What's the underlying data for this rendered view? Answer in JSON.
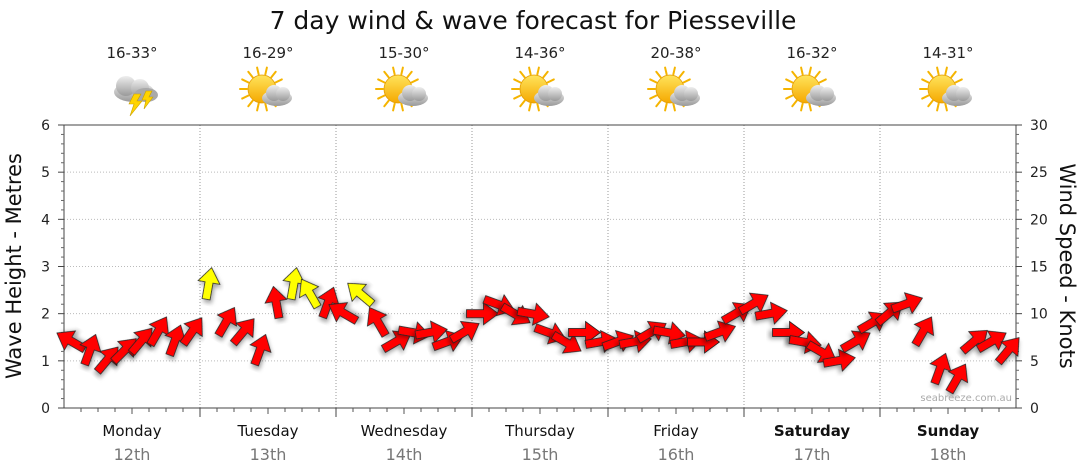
{
  "chart_data": {
    "type": "scatter",
    "title": "7 day wind & wave forecast for Piesseville",
    "ylabel_left": "Wave Height - Metres",
    "ylabel_right": "Wind Speed - Knots",
    "ylim_left": [
      0,
      6
    ],
    "ylim_right": [
      0,
      30
    ],
    "yticks_left": [
      "0",
      "1",
      "2",
      "3",
      "4",
      "5",
      "6"
    ],
    "yticks_right": [
      "0",
      "5",
      "10",
      "15",
      "20",
      "25",
      "30"
    ],
    "grid": true,
    "days": [
      {
        "name": "Monday",
        "date": "12th",
        "temp": "16-33°",
        "weather": "storm-cloud-icon",
        "bold": false
      },
      {
        "name": "Tuesday",
        "date": "13th",
        "temp": "16-29°",
        "weather": "sun-cloud-icon",
        "bold": false
      },
      {
        "name": "Wednesday",
        "date": "14th",
        "temp": "15-30°",
        "weather": "sun-cloud-icon",
        "bold": false
      },
      {
        "name": "Thursday",
        "date": "15th",
        "temp": "14-36°",
        "weather": "sun-cloud-icon",
        "bold": false
      },
      {
        "name": "Friday",
        "date": "16th",
        "temp": "20-38°",
        "weather": "sun-cloud-icon",
        "bold": false
      },
      {
        "name": "Saturday",
        "date": "17th",
        "temp": "16-32°",
        "weather": "sun-cloud-icon",
        "bold": true
      },
      {
        "name": "Sunday",
        "date": "18th",
        "temp": "14-31°",
        "weather": "sun-cloud-icon",
        "bold": true
      }
    ],
    "wind_arrow_colors": {
      "low": "#ff0000",
      "high": "#ffff00"
    },
    "wind_series": {
      "name": "Wind",
      "unit": "knots",
      "x_hours": [
        0,
        3,
        6,
        9,
        12,
        15,
        18,
        21,
        24,
        27,
        30,
        33,
        36,
        39,
        42,
        45,
        48,
        51,
        54,
        57,
        60,
        63,
        66,
        69,
        72,
        75,
        78,
        81,
        84,
        87,
        90,
        93,
        96,
        99,
        102,
        105,
        108,
        111,
        114,
        117,
        120,
        123,
        126,
        129,
        132,
        135,
        138,
        141,
        144,
        147,
        150,
        153,
        156,
        159,
        162,
        165
      ],
      "speeds": [
        7,
        6,
        5,
        6,
        7,
        8,
        7,
        8,
        13,
        9,
        8,
        6,
        11,
        13,
        12,
        11,
        10,
        12,
        9,
        7,
        8,
        8,
        7,
        8,
        10,
        11,
        10,
        10,
        8,
        7,
        8,
        7,
        7,
        7,
        8,
        8,
        7,
        7,
        8,
        10,
        11,
        10,
        8,
        7,
        6,
        5,
        7,
        9,
        10,
        11,
        8,
        4,
        3,
        7,
        7,
        6
      ],
      "directions_deg": [
        300,
        20,
        40,
        45,
        40,
        30,
        20,
        35,
        10,
        30,
        40,
        20,
        350,
        10,
        330,
        20,
        300,
        310,
        330,
        60,
        100,
        80,
        70,
        60,
        90,
        110,
        120,
        100,
        110,
        120,
        90,
        80,
        70,
        80,
        60,
        100,
        80,
        90,
        70,
        60,
        60,
        80,
        90,
        100,
        120,
        80,
        60,
        60,
        50,
        70,
        30,
        20,
        30,
        50,
        60,
        40
      ]
    }
  },
  "watermark": "seabreeze.com.au"
}
